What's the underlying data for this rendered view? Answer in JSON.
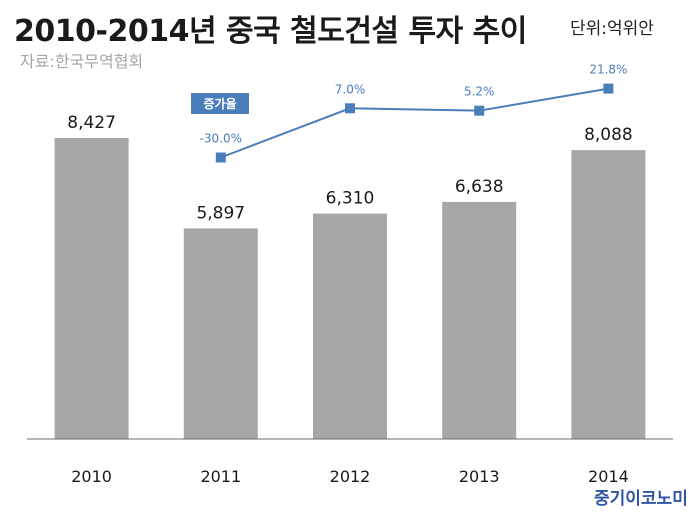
{
  "header": {
    "title": "2010-2014년 중국 철도건설 투자 추이",
    "unit": "단위:억위안",
    "source": "자료:한국무역협회",
    "brand": "중기이코노미"
  },
  "chart_data": {
    "type": "bar",
    "categories": [
      "2010",
      "2011",
      "2012",
      "2013",
      "2014"
    ],
    "values": [
      8427,
      5897,
      6310,
      6638,
      8088
    ],
    "value_labels": [
      "8,427",
      "5,897",
      "6,310",
      "6,638",
      "8,088"
    ],
    "bar_color": "#a6a6a6",
    "ylim": [
      0,
      10000
    ],
    "line_series": {
      "name": "증가율",
      "categories": [
        "2011",
        "2012",
        "2013",
        "2014"
      ],
      "values": [
        -30.0,
        7.0,
        5.2,
        21.8
      ],
      "labels": [
        "-30.0%",
        "7.0%",
        "5.2%",
        "21.8%"
      ],
      "color": "#4a7ebb"
    }
  }
}
